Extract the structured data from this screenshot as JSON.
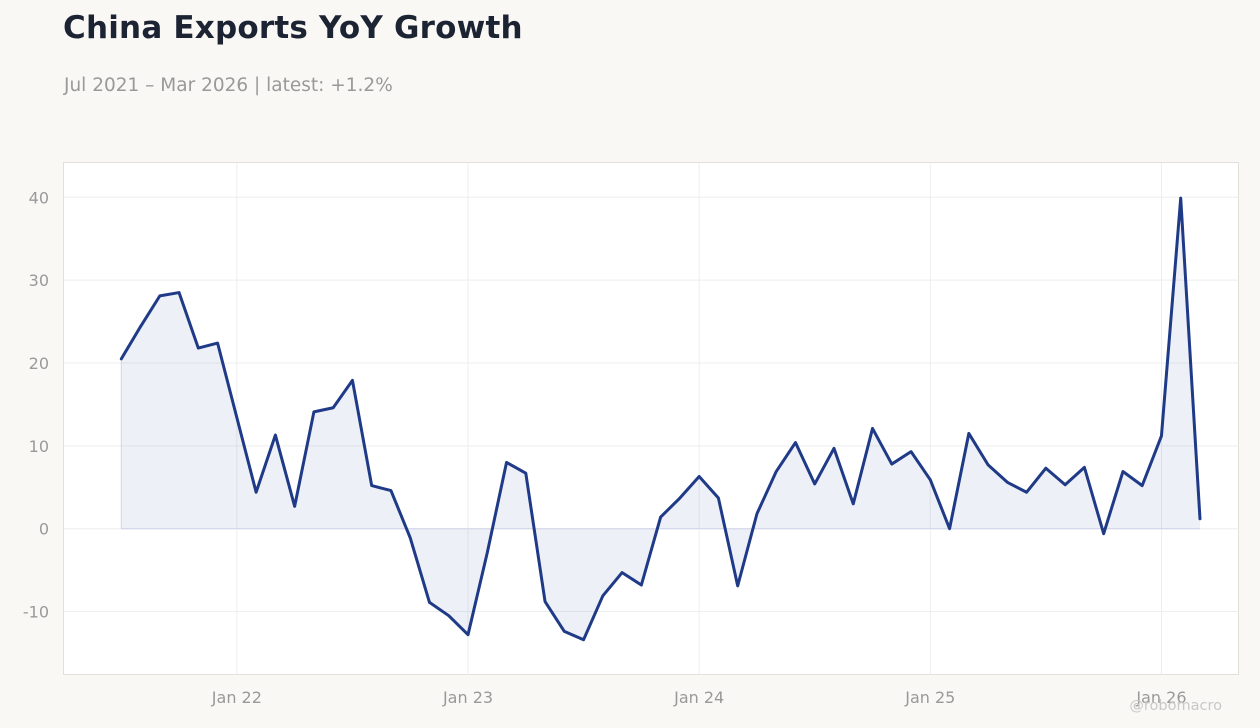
{
  "header": {
    "title": "China Exports YoY Growth",
    "subtitle": "Jul 2021 – Mar 2026 | latest: +1.2%"
  },
  "watermark": "@robomacro",
  "colors": {
    "background": "#f9f8f5",
    "plot_background": "#ffffff",
    "line": "#1f3a87",
    "fill": "#1f3a87",
    "grid": "#eeeeee",
    "zero_line": "#cfd3ea",
    "text_muted": "#999999",
    "title": "#1c2333"
  },
  "chart_data": {
    "type": "area",
    "title": "China Exports YoY Growth",
    "subtitle": "Jul 2021 – Mar 2026 | latest: +1.2%",
    "xlabel": "",
    "ylabel": "",
    "x_ticks": [
      {
        "label": "Jan 22",
        "date": "2022-01"
      },
      {
        "label": "Jan 23",
        "date": "2023-01"
      },
      {
        "label": "Jan 24",
        "date": "2024-01"
      },
      {
        "label": "Jan 25",
        "date": "2025-01"
      },
      {
        "label": "Jan 26",
        "date": "2026-01"
      }
    ],
    "y_ticks": [
      -10,
      0,
      10,
      20,
      30,
      40
    ],
    "ylim": [
      -17.6,
      44.2
    ],
    "xlim": [
      "2021-04",
      "2026-05"
    ],
    "grid": true,
    "series": [
      {
        "x": [
          "2021-07",
          "2021-08",
          "2021-09",
          "2021-10",
          "2021-11",
          "2021-12",
          "2022-02",
          "2022-03",
          "2022-04",
          "2022-05",
          "2022-06",
          "2022-07",
          "2022-08",
          "2022-09",
          "2022-10",
          "2022-11",
          "2022-12",
          "2023-01",
          "2023-02",
          "2023-03",
          "2023-04",
          "2023-05",
          "2023-06",
          "2023-07",
          "2023-08",
          "2023-09",
          "2023-10",
          "2023-11",
          "2023-12",
          "2024-01",
          "2024-02",
          "2024-03",
          "2024-04",
          "2024-05",
          "2024-06",
          "2024-07",
          "2024-08",
          "2024-09",
          "2024-10",
          "2024-11",
          "2024-12",
          "2025-01",
          "2025-02",
          "2025-03",
          "2025-04",
          "2025-05",
          "2025-06",
          "2025-07",
          "2025-08",
          "2025-09",
          "2025-10",
          "2025-11",
          "2025-12",
          "2026-01",
          "2026-02",
          "2026-03"
        ],
        "values": [
          20.5,
          24.4,
          28.1,
          28.5,
          21.8,
          22.4,
          4.4,
          11.3,
          2.7,
          14.1,
          14.6,
          17.9,
          5.2,
          4.6,
          -1.1,
          -8.9,
          -10.5,
          -12.8,
          -2.9,
          8.0,
          6.7,
          -8.8,
          -12.4,
          -13.4,
          -8.1,
          -5.3,
          -6.8,
          1.4,
          3.7,
          6.3,
          3.7,
          -6.9,
          1.8,
          6.9,
          10.4,
          5.4,
          9.7,
          3.0,
          12.1,
          7.8,
          9.3,
          5.9,
          0.0,
          11.5,
          7.7,
          5.6,
          4.4,
          7.3,
          5.3,
          7.4,
          -0.6,
          6.9,
          5.2,
          11.2,
          39.9,
          1.2
        ]
      }
    ]
  }
}
